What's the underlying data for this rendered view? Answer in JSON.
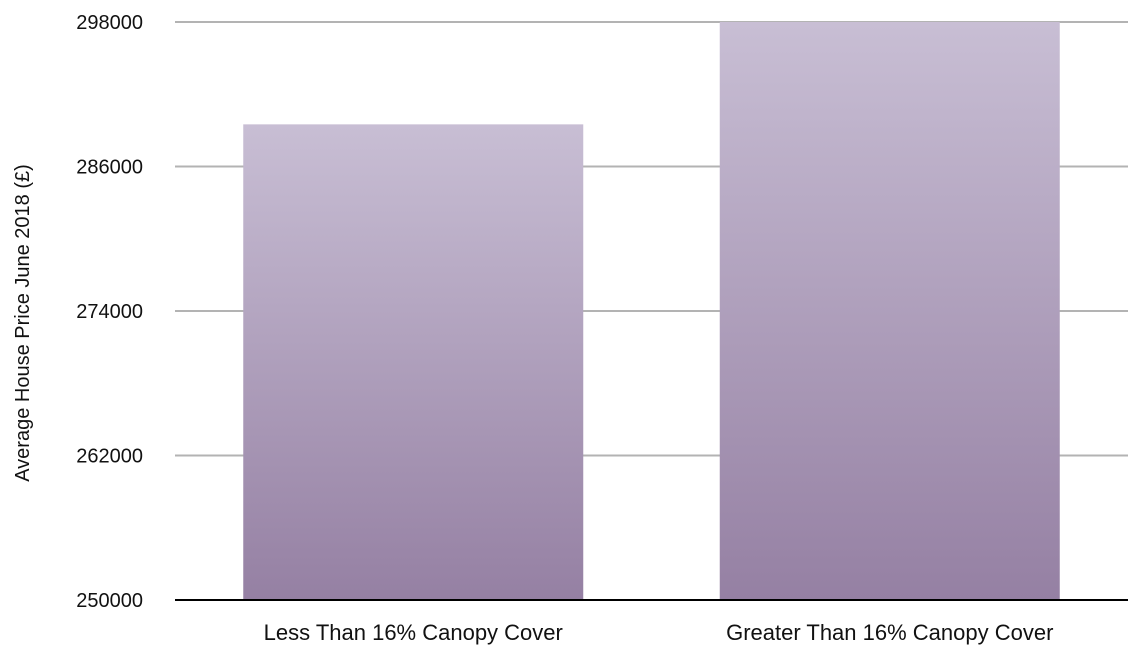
{
  "chart_data": {
    "type": "bar",
    "categories": [
      "Less Than 16% Canopy Cover",
      "Greater Than 16% Canopy Cover"
    ],
    "series": [
      {
        "values": [
          289500,
          298000
        ]
      }
    ],
    "ylabel": "Average House Price June 2018  (£)",
    "ylim": [
      250000,
      298000
    ],
    "yticks": [
      "250000",
      "262000",
      "274000",
      "286000",
      "298000"
    ],
    "grid": true,
    "colors": {
      "bar_top": "#c8bed4",
      "bar_bottom": "#9580a3",
      "grid": "#b3b3b3",
      "axis": "#000000"
    }
  }
}
